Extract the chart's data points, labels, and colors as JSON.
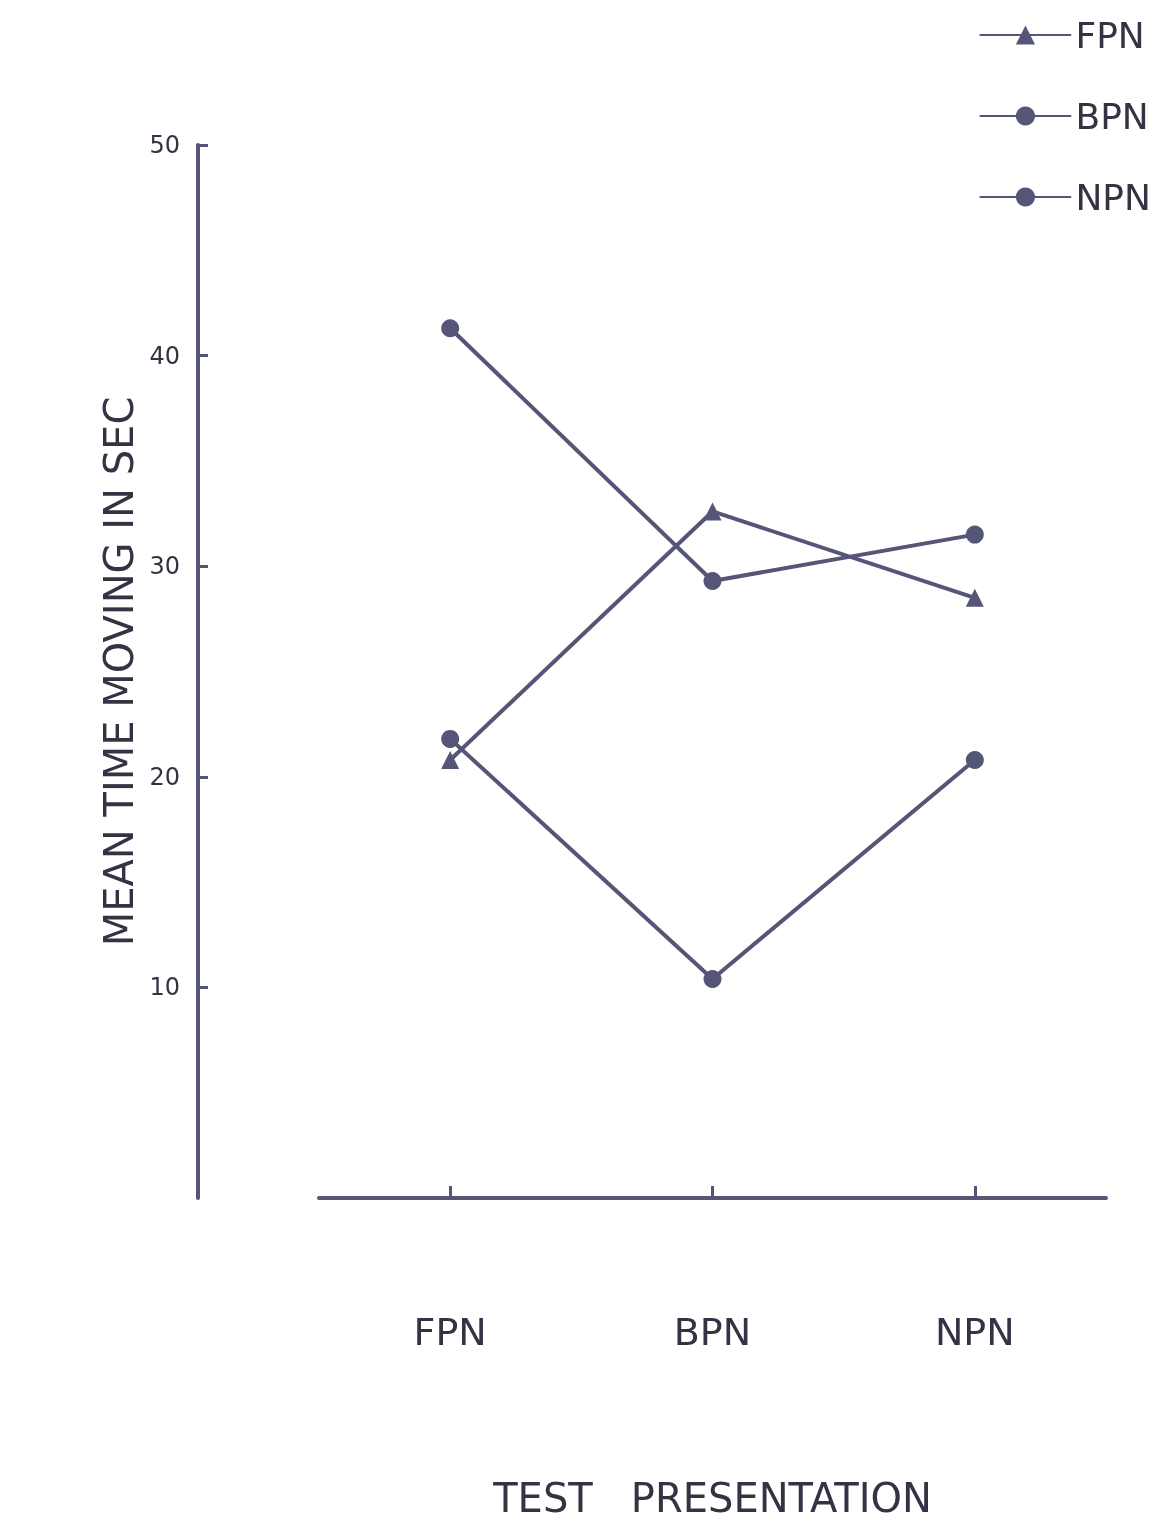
{
  "chart_data": {
    "type": "line",
    "xlabel": "TEST   PRESENTATION",
    "ylabel": "MEAN TIME MOVING IN SEC",
    "categories": [
      "FPN",
      "BPN",
      "NPN"
    ],
    "series": [
      {
        "name": "FPN",
        "color": "#555577",
        "marker": "triangle",
        "values": [
          20.8,
          32.6,
          28.5
        ]
      },
      {
        "name": "BPN",
        "color": "#555577",
        "marker": "circle",
        "values": [
          21.8,
          10.4,
          20.8
        ]
      },
      {
        "name": "NPN",
        "color": "#555577",
        "marker": "circle",
        "values": [
          41.3,
          29.3,
          31.5
        ]
      }
    ],
    "ylim": [
      0,
      50
    ],
    "yticks": [
      10,
      20,
      30,
      40,
      50
    ],
    "grid": false,
    "legend": "top right",
    "line_style": "solid"
  }
}
